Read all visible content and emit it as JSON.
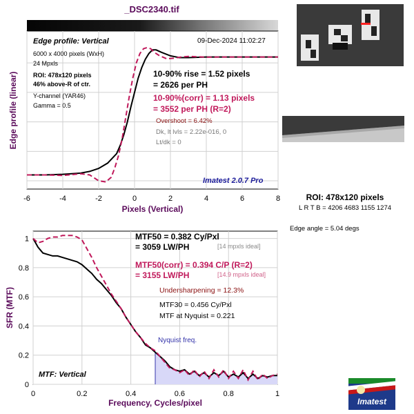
{
  "header": {
    "filename": "_DSC2340.tif"
  },
  "top_panel": {
    "title": "Edge profile: Vertical",
    "timestamp": "09-Dec-2024 11:02:27",
    "info_lines": [
      "6000 x 4000 pixels (WxH)",
      "24 Mpxls"
    ],
    "roi_line1": "ROI: 478x120 pixels",
    "roi_line2": "46% above-R of ctr.",
    "channel_line1": "Y-channel  (YAR46)",
    "channel_line2": "Gamma = 0.5",
    "rise_line1": "10-90% rise = 1.52 pixels",
    "rise_line2": "= 2626 per PH",
    "corr_line1": "10-90%(corr) = 1.13 pixels",
    "corr_line2": "= 3552 per PH  (R=2)",
    "overshoot": "Overshoot = 6.42%",
    "dk_line": "Dk, lt lvls = 2.22e-016, 0",
    "ltdk_line": "Lt/dk = 0",
    "brand": "Imatest 2.0.7 Pro",
    "xlabel": "Pixels (Vertical)",
    "ylabel": "Edge profile (linear)"
  },
  "bottom_panel": {
    "mtf50_line1": "MTF50 = 0.382 Cy/Pxl",
    "mtf50_line2": "= 3059 LW/PH",
    "mtf50_ideal": "[14 mpxls ideal]",
    "corr_line1": "MTF50(corr) = 0.394  C/P  (R=2)",
    "corr_line2": "= 3155 LW/PH",
    "corr_ideal": "[14.9 mpxls ideal]",
    "undersharpening": "Undersharpening = 12.3%",
    "mtf30": "MTF30 = 0.456 Cy/Pxl",
    "mtf_nyq": "MTF at Nyquist = 0.221",
    "nyquist_label": "Nyquist freq.",
    "panel_label": "MTF: Vertical",
    "xlabel": "Frequency, Cycles/pixel",
    "ylabel": "SFR (MTF)"
  },
  "right_panel": {
    "roi_title": "ROI: 478x120 pixels",
    "roi_coords": "L R  T B = 4206 4683  1155 1274",
    "edge_angle": "Edge angle = 5.04 degs",
    "logo_text": "Imatest"
  },
  "colors": {
    "measured": "#000000",
    "corrected": "#c0185a",
    "label_purple": "#5a0a5a",
    "brand_blue": "#1a1a99",
    "nyquist_fill": "#d8d8f8"
  },
  "chart_data": [
    {
      "type": "line",
      "title": "Edge profile: Vertical",
      "xlabel": "Pixels (Vertical)",
      "ylabel": "Edge profile (linear)",
      "xlim": [
        -6,
        8
      ],
      "xticks": [
        -6,
        -4,
        -2,
        0,
        2,
        4,
        6,
        8
      ],
      "grid": true,
      "series": [
        {
          "x": [
            -6,
            -5,
            -4,
            -3,
            -2.5,
            -2,
            -1.5,
            -1.0,
            -0.8,
            -0.6,
            -0.4,
            -0.2,
            0,
            0.2,
            0.4,
            0.6,
            0.8,
            1.0,
            1.2,
            1.5,
            2,
            2.5,
            3,
            4,
            5,
            6,
            7,
            8
          ],
          "y": [
            0.0,
            0.0,
            0.005,
            0.015,
            0.03,
            0.055,
            0.1,
            0.18,
            0.25,
            0.34,
            0.45,
            0.58,
            0.7,
            0.82,
            0.91,
            0.98,
            1.03,
            1.06,
            1.06,
            1.04,
            1.01,
            0.995,
            0.995,
            1.0,
            1.0,
            1.0,
            1.0,
            1.0
          ]
        },
        {
          "x": [
            -6,
            -5,
            -4,
            -3,
            -2.5,
            -2,
            -1.6,
            -1.3,
            -1.1,
            -0.9,
            -0.7,
            -0.5,
            -0.3,
            -0.1,
            0.1,
            0.3,
            0.5,
            0.7,
            0.9,
            1.1,
            1.4,
            1.8,
            2.2,
            2.6,
            3,
            4,
            5,
            6,
            7,
            8
          ],
          "y": [
            0.0,
            0.0,
            -0.005,
            0.01,
            0.0,
            -0.05,
            -0.06,
            -0.02,
            0.06,
            0.16,
            0.3,
            0.48,
            0.66,
            0.82,
            0.95,
            1.03,
            1.07,
            1.08,
            1.07,
            1.04,
            1.01,
            0.985,
            0.99,
            1.0,
            1.005,
            0.998,
            1.0,
            1.0,
            1.0,
            1.0
          ]
        }
      ]
    },
    {
      "type": "line",
      "title": "MTF: Vertical",
      "xlabel": "Frequency, Cycles/pixel",
      "ylabel": "SFR (MTF)",
      "xlim": [
        0,
        1
      ],
      "ylim": [
        0,
        1.05
      ],
      "xticks": [
        0,
        0.2,
        0.4,
        0.6,
        0.8,
        1
      ],
      "yticks": [
        0,
        0.2,
        0.4,
        0.6,
        0.8,
        1
      ],
      "grid": true,
      "nyquist": 0.5,
      "series": [
        {
          "x": [
            0,
            0.02,
            0.04,
            0.06,
            0.08,
            0.1,
            0.12,
            0.14,
            0.16,
            0.18,
            0.2,
            0.22,
            0.24,
            0.26,
            0.28,
            0.3,
            0.32,
            0.34,
            0.36,
            0.38,
            0.4,
            0.42,
            0.44,
            0.46,
            0.48,
            0.5,
            0.52,
            0.54,
            0.56,
            0.58,
            0.6,
            0.62,
            0.64,
            0.66,
            0.68,
            0.7,
            0.72,
            0.74,
            0.76,
            0.78,
            0.8,
            0.82,
            0.84,
            0.86,
            0.88,
            0.9,
            0.92,
            0.94,
            0.96,
            0.98,
            1.0
          ],
          "y": [
            1.0,
            0.94,
            0.9,
            0.89,
            0.88,
            0.88,
            0.87,
            0.86,
            0.85,
            0.84,
            0.82,
            0.79,
            0.76,
            0.72,
            0.69,
            0.65,
            0.61,
            0.56,
            0.52,
            0.46,
            0.41,
            0.36,
            0.32,
            0.27,
            0.25,
            0.22,
            0.19,
            0.16,
            0.12,
            0.1,
            0.09,
            0.1,
            0.07,
            0.09,
            0.06,
            0.08,
            0.05,
            0.08,
            0.06,
            0.09,
            0.05,
            0.07,
            0.05,
            0.08,
            0.04,
            0.07,
            0.04,
            0.06,
            0.05,
            0.06,
            0.06
          ]
        },
        {
          "x": [
            0,
            0.02,
            0.04,
            0.06,
            0.08,
            0.1,
            0.12,
            0.14,
            0.16,
            0.18,
            0.2,
            0.22,
            0.24,
            0.26,
            0.28,
            0.3,
            0.32,
            0.34,
            0.36,
            0.38,
            0.4,
            0.42,
            0.44,
            0.46,
            0.48,
            0.5,
            0.52,
            0.54,
            0.56,
            0.58,
            0.6,
            0.62,
            0.64,
            0.66,
            0.68,
            0.7,
            0.72,
            0.74,
            0.76,
            0.78,
            0.8,
            0.82,
            0.84,
            0.86,
            0.88,
            0.9,
            0.92,
            0.94,
            0.96,
            0.98,
            1.0
          ],
          "y": [
            1.0,
            0.97,
            0.98,
            1.0,
            1.01,
            1.01,
            1.02,
            1.02,
            1.02,
            1.01,
            0.99,
            0.93,
            0.87,
            0.8,
            0.74,
            0.68,
            0.62,
            0.57,
            0.52,
            0.46,
            0.41,
            0.36,
            0.32,
            0.28,
            0.25,
            0.23,
            0.19,
            0.15,
            0.11,
            0.1,
            0.08,
            0.1,
            0.06,
            0.1,
            0.05,
            0.09,
            0.04,
            0.1,
            0.05,
            0.1,
            0.04,
            0.09,
            0.04,
            0.1,
            0.03,
            0.09,
            0.03,
            0.07,
            0.04,
            0.06,
            0.07
          ]
        }
      ]
    }
  ]
}
